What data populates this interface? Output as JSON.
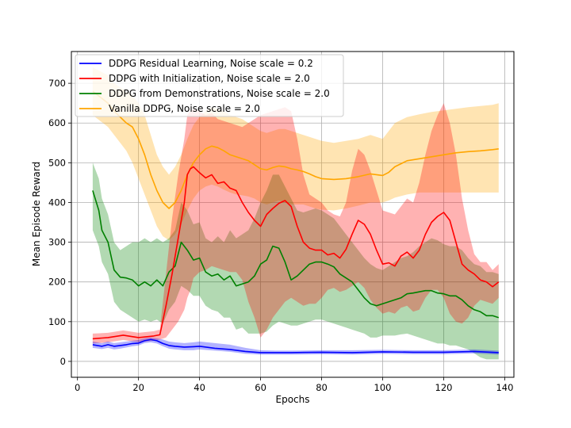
{
  "chart_data": {
    "type": "line",
    "title": "",
    "xlabel": "Epochs",
    "ylabel": "Mean Episode Reward",
    "xlim": [
      -2,
      143
    ],
    "ylim": [
      -40,
      780
    ],
    "xticks": [
      0,
      20,
      40,
      60,
      80,
      100,
      120,
      140
    ],
    "yticks": [
      0,
      100,
      200,
      300,
      400,
      500,
      600,
      700
    ],
    "grid": true,
    "legend_position": "top-left",
    "series": [
      {
        "name": "DDPG Residual Learning, Noise scale = 0.2",
        "color": "#0000ff",
        "x": [
          5,
          8,
          10,
          12,
          14,
          16,
          18,
          20,
          22,
          24,
          26,
          28,
          30,
          32,
          35,
          38,
          40,
          45,
          50,
          55,
          60,
          65,
          70,
          80,
          90,
          100,
          110,
          120,
          130,
          138
        ],
        "mean": [
          42,
          38,
          42,
          38,
          40,
          42,
          45,
          46,
          52,
          55,
          52,
          45,
          40,
          38,
          36,
          37,
          38,
          33,
          30,
          25,
          22,
          22,
          22,
          23,
          22,
          24,
          23,
          23,
          25,
          22
        ],
        "lower": [
          34,
          31,
          34,
          30,
          32,
          35,
          38,
          40,
          46,
          48,
          45,
          38,
          32,
          30,
          28,
          28,
          30,
          27,
          24,
          19,
          17,
          17,
          17,
          18,
          17,
          19,
          18,
          18,
          20,
          17
        ],
        "upper": [
          50,
          46,
          50,
          46,
          48,
          50,
          52,
          54,
          58,
          60,
          58,
          55,
          50,
          48,
          46,
          48,
          50,
          46,
          42,
          34,
          28,
          27,
          27,
          28,
          28,
          29,
          28,
          28,
          30,
          27
        ]
      },
      {
        "name": "DDPG with Initialization, Noise scale = 2.0",
        "color": "#ff0000",
        "x": [
          5,
          10,
          15,
          20,
          25,
          27,
          29,
          31,
          33,
          35,
          36,
          37,
          38,
          40,
          42,
          44,
          46,
          48,
          50,
          52,
          54,
          56,
          58,
          60,
          62,
          64,
          66,
          68,
          70,
          72,
          74,
          76,
          78,
          80,
          82,
          84,
          86,
          88,
          90,
          92,
          94,
          96,
          98,
          100,
          102,
          104,
          106,
          108,
          110,
          112,
          114,
          116,
          118,
          120,
          122,
          124,
          126,
          128,
          130,
          132,
          134,
          136,
          138
        ],
        "mean": [
          57,
          60,
          66,
          60,
          64,
          67,
          140,
          220,
          310,
          400,
          470,
          485,
          490,
          475,
          462,
          470,
          448,
          452,
          436,
          430,
          400,
          375,
          355,
          340,
          370,
          385,
          398,
          405,
          390,
          340,
          300,
          285,
          280,
          280,
          268,
          272,
          260,
          282,
          320,
          355,
          345,
          320,
          280,
          245,
          248,
          240,
          265,
          275,
          260,
          280,
          320,
          350,
          365,
          375,
          355,
          300,
          245,
          230,
          220,
          205,
          200,
          188,
          200
        ],
        "lower": [
          45,
          48,
          54,
          48,
          52,
          55,
          60,
          80,
          100,
          130,
          160,
          180,
          210,
          225,
          230,
          240,
          235,
          230,
          225,
          225,
          205,
          150,
          110,
          60,
          80,
          110,
          130,
          150,
          160,
          150,
          140,
          145,
          145,
          160,
          180,
          185,
          175,
          180,
          190,
          200,
          185,
          155,
          135,
          120,
          125,
          120,
          135,
          140,
          125,
          130,
          160,
          180,
          180,
          160,
          120,
          100,
          95,
          110,
          140,
          155,
          150,
          145,
          160
        ],
        "upper": [
          70,
          72,
          78,
          72,
          76,
          80,
          220,
          360,
          470,
          560,
          620,
          630,
          635,
          630,
          620,
          625,
          610,
          605,
          600,
          595,
          590,
          600,
          610,
          620,
          625,
          630,
          635,
          640,
          630,
          560,
          470,
          420,
          410,
          400,
          380,
          370,
          365,
          400,
          480,
          535,
          520,
          480,
          430,
          380,
          375,
          370,
          390,
          410,
          400,
          450,
          520,
          580,
          620,
          650,
          600,
          520,
          410,
          330,
          270,
          250,
          250,
          230,
          245
        ]
      },
      {
        "name": "DDPG from Demonstrations, Noise scale = 2.0",
        "color": "#008000",
        "x": [
          5,
          7,
          8,
          10,
          12,
          14,
          16,
          18,
          20,
          22,
          24,
          26,
          28,
          30,
          32,
          34,
          36,
          38,
          40,
          42,
          44,
          46,
          48,
          50,
          52,
          54,
          56,
          58,
          60,
          62,
          64,
          66,
          68,
          70,
          72,
          74,
          76,
          78,
          80,
          82,
          84,
          86,
          88,
          90,
          92,
          94,
          96,
          98,
          100,
          102,
          104,
          106,
          108,
          110,
          112,
          114,
          116,
          118,
          120,
          122,
          124,
          126,
          128,
          130,
          132,
          134,
          136,
          138
        ],
        "mean": [
          430,
          380,
          330,
          300,
          230,
          212,
          210,
          205,
          190,
          200,
          190,
          205,
          190,
          225,
          240,
          300,
          280,
          255,
          260,
          225,
          215,
          220,
          205,
          215,
          190,
          195,
          200,
          215,
          245,
          255,
          290,
          285,
          250,
          205,
          215,
          230,
          245,
          250,
          250,
          245,
          238,
          220,
          210,
          200,
          180,
          160,
          145,
          140,
          145,
          150,
          155,
          160,
          170,
          172,
          175,
          178,
          178,
          172,
          170,
          165,
          165,
          155,
          140,
          130,
          125,
          115,
          115,
          110
        ],
        "lower": [
          330,
          290,
          250,
          220,
          150,
          130,
          120,
          110,
          100,
          105,
          100,
          105,
          95,
          130,
          150,
          190,
          180,
          165,
          165,
          140,
          130,
          125,
          110,
          110,
          80,
          85,
          70,
          70,
          70,
          75,
          90,
          100,
          95,
          90,
          90,
          95,
          100,
          105,
          105,
          100,
          95,
          90,
          85,
          80,
          75,
          70,
          60,
          60,
          65,
          65,
          65,
          68,
          70,
          65,
          60,
          55,
          50,
          45,
          45,
          40,
          40,
          35,
          30,
          20,
          10,
          5,
          5,
          5
        ],
        "upper": [
          500,
          460,
          410,
          370,
          300,
          280,
          290,
          300,
          300,
          310,
          300,
          310,
          300,
          310,
          330,
          400,
          380,
          345,
          350,
          310,
          300,
          315,
          300,
          330,
          310,
          320,
          330,
          360,
          400,
          430,
          470,
          470,
          440,
          410,
          380,
          375,
          380,
          385,
          380,
          370,
          360,
          340,
          320,
          300,
          280,
          260,
          245,
          235,
          230,
          240,
          250,
          260,
          265,
          275,
          290,
          300,
          310,
          305,
          295,
          290,
          290,
          280,
          260,
          245,
          240,
          225,
          225,
          220
        ]
      },
      {
        "name": "Vanilla DDPG, Noise scale = 2.0",
        "color": "#ffa500",
        "x": [
          5,
          10,
          12,
          14,
          16,
          18,
          20,
          22,
          24,
          26,
          28,
          30,
          32,
          34,
          36,
          38,
          40,
          42,
          44,
          46,
          48,
          50,
          52,
          54,
          56,
          58,
          60,
          62,
          64,
          66,
          68,
          70,
          72,
          74,
          76,
          78,
          80,
          84,
          88,
          92,
          96,
          100,
          102,
          104,
          108,
          112,
          116,
          120,
          124,
          128,
          132,
          136,
          138
        ],
        "mean": [
          680,
          650,
          630,
          615,
          600,
          590,
          560,
          520,
          470,
          430,
          400,
          385,
          400,
          430,
          470,
          500,
          520,
          535,
          542,
          538,
          530,
          520,
          515,
          510,
          505,
          495,
          485,
          482,
          488,
          492,
          490,
          485,
          482,
          478,
          472,
          465,
          460,
          458,
          460,
          465,
          472,
          468,
          476,
          490,
          505,
          510,
          515,
          520,
          525,
          528,
          530,
          533,
          535
        ],
        "lower": [
          620,
          590,
          570,
          550,
          530,
          500,
          460,
          420,
          380,
          340,
          315,
          305,
          320,
          345,
          380,
          410,
          430,
          440,
          445,
          440,
          432,
          425,
          420,
          418,
          415,
          410,
          400,
          395,
          400,
          405,
          400,
          395,
          395,
          395,
          390,
          385,
          382,
          380,
          385,
          392,
          400,
          400,
          405,
          412,
          420,
          425,
          425,
          425,
          425,
          425,
          425,
          425,
          425
        ],
        "upper": [
          740,
          720,
          700,
          690,
          680,
          670,
          650,
          620,
          570,
          520,
          490,
          470,
          490,
          520,
          560,
          595,
          615,
          630,
          640,
          635,
          630,
          620,
          615,
          610,
          600,
          590,
          580,
          575,
          580,
          585,
          585,
          580,
          575,
          570,
          565,
          560,
          555,
          550,
          555,
          560,
          570,
          560,
          580,
          600,
          615,
          622,
          628,
          632,
          636,
          640,
          643,
          646,
          650
        ]
      }
    ]
  }
}
